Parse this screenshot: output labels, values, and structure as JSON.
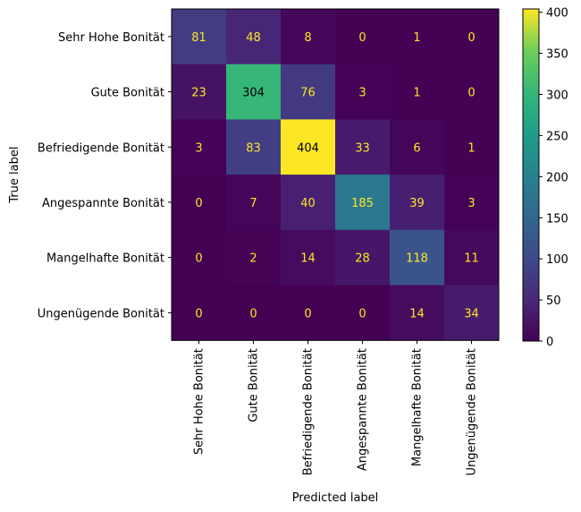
{
  "chart_data": {
    "type": "heatmap",
    "title": "",
    "xlabel": "Predicted label",
    "ylabel": "True label",
    "labels": [
      "Sehr Hohe Bonität",
      "Gute Bonität",
      "Befriedigende Bonität",
      "Angespannte Bonität",
      "Mangelhafte Bonität",
      "Ungenügende Bonität"
    ],
    "matrix": [
      [
        81,
        48,
        8,
        0,
        1,
        0
      ],
      [
        23,
        304,
        76,
        3,
        1,
        0
      ],
      [
        3,
        83,
        404,
        33,
        6,
        1
      ],
      [
        0,
        7,
        40,
        185,
        39,
        3
      ],
      [
        0,
        2,
        14,
        28,
        118,
        11
      ],
      [
        0,
        0,
        0,
        0,
        14,
        34
      ]
    ],
    "colormap": "viridis",
    "colorbar": {
      "range": [
        0,
        404
      ],
      "ticks": [
        0,
        50,
        100,
        150,
        200,
        250,
        300,
        350,
        400
      ]
    }
  }
}
